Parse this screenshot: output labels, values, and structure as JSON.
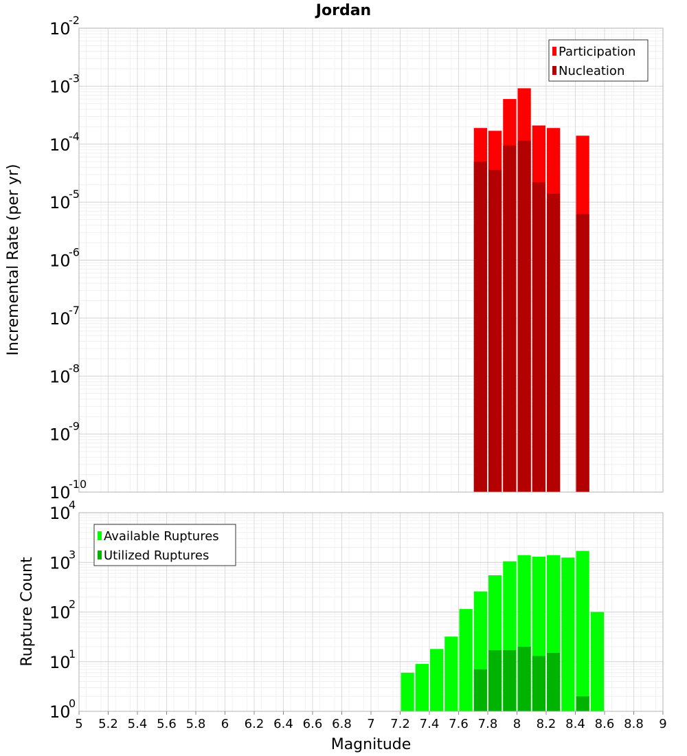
{
  "chart_data": [
    {
      "type": "bar",
      "title": "Jordan",
      "ylabel": "Incremental Rate (per yr)",
      "yscale": "log",
      "ylim_exponents": [
        -10,
        -2
      ],
      "xlim": [
        5,
        9
      ],
      "grid": true,
      "legend_position": "top-right",
      "x": [
        7.75,
        7.85,
        7.95,
        8.05,
        8.15,
        8.25,
        8.45
      ],
      "series": [
        {
          "name": "Participation",
          "color": "#ff0000",
          "values": [
            0.00019,
            0.00017,
            0.0006,
            0.00092,
            0.00021,
            0.00019,
            0.00014
          ]
        },
        {
          "name": "Nucleation",
          "color": "#b30000",
          "values": [
            5e-05,
            3.6e-05,
            9.5e-05,
            0.000115,
            2.2e-05,
            1.4e-05,
            6.2e-06
          ]
        }
      ]
    },
    {
      "type": "bar",
      "ylabel": "Rupture Count",
      "xlabel": "Magnitude",
      "yscale": "log",
      "ylim_exponents": [
        0,
        4
      ],
      "xlim": [
        5,
        9
      ],
      "grid": true,
      "legend_position": "top-left",
      "x": [
        7.15,
        7.25,
        7.35,
        7.45,
        7.55,
        7.65,
        7.75,
        7.85,
        7.95,
        8.05,
        8.15,
        8.25,
        8.35,
        8.45,
        8.55
      ],
      "series": [
        {
          "name": "Available Ruptures",
          "color": "#00ff00",
          "values": [
            1,
            6,
            9,
            18,
            32,
            115,
            260,
            550,
            1050,
            1400,
            1300,
            1400,
            1250,
            1700,
            100
          ]
        },
        {
          "name": "Utilized Ruptures",
          "color": "#00b300",
          "values": [
            null,
            null,
            null,
            null,
            null,
            null,
            7,
            17,
            17,
            20,
            13,
            15,
            null,
            2,
            null
          ]
        }
      ],
      "xticks": [
        "5",
        "5.2",
        "5.4",
        "5.6",
        "5.8",
        "6",
        "6.2",
        "6.4",
        "6.6",
        "6.8",
        "7",
        "7.2",
        "7.4",
        "7.6",
        "7.8",
        "8",
        "8.2",
        "8.4",
        "8.6",
        "8.8",
        "9"
      ]
    }
  ]
}
